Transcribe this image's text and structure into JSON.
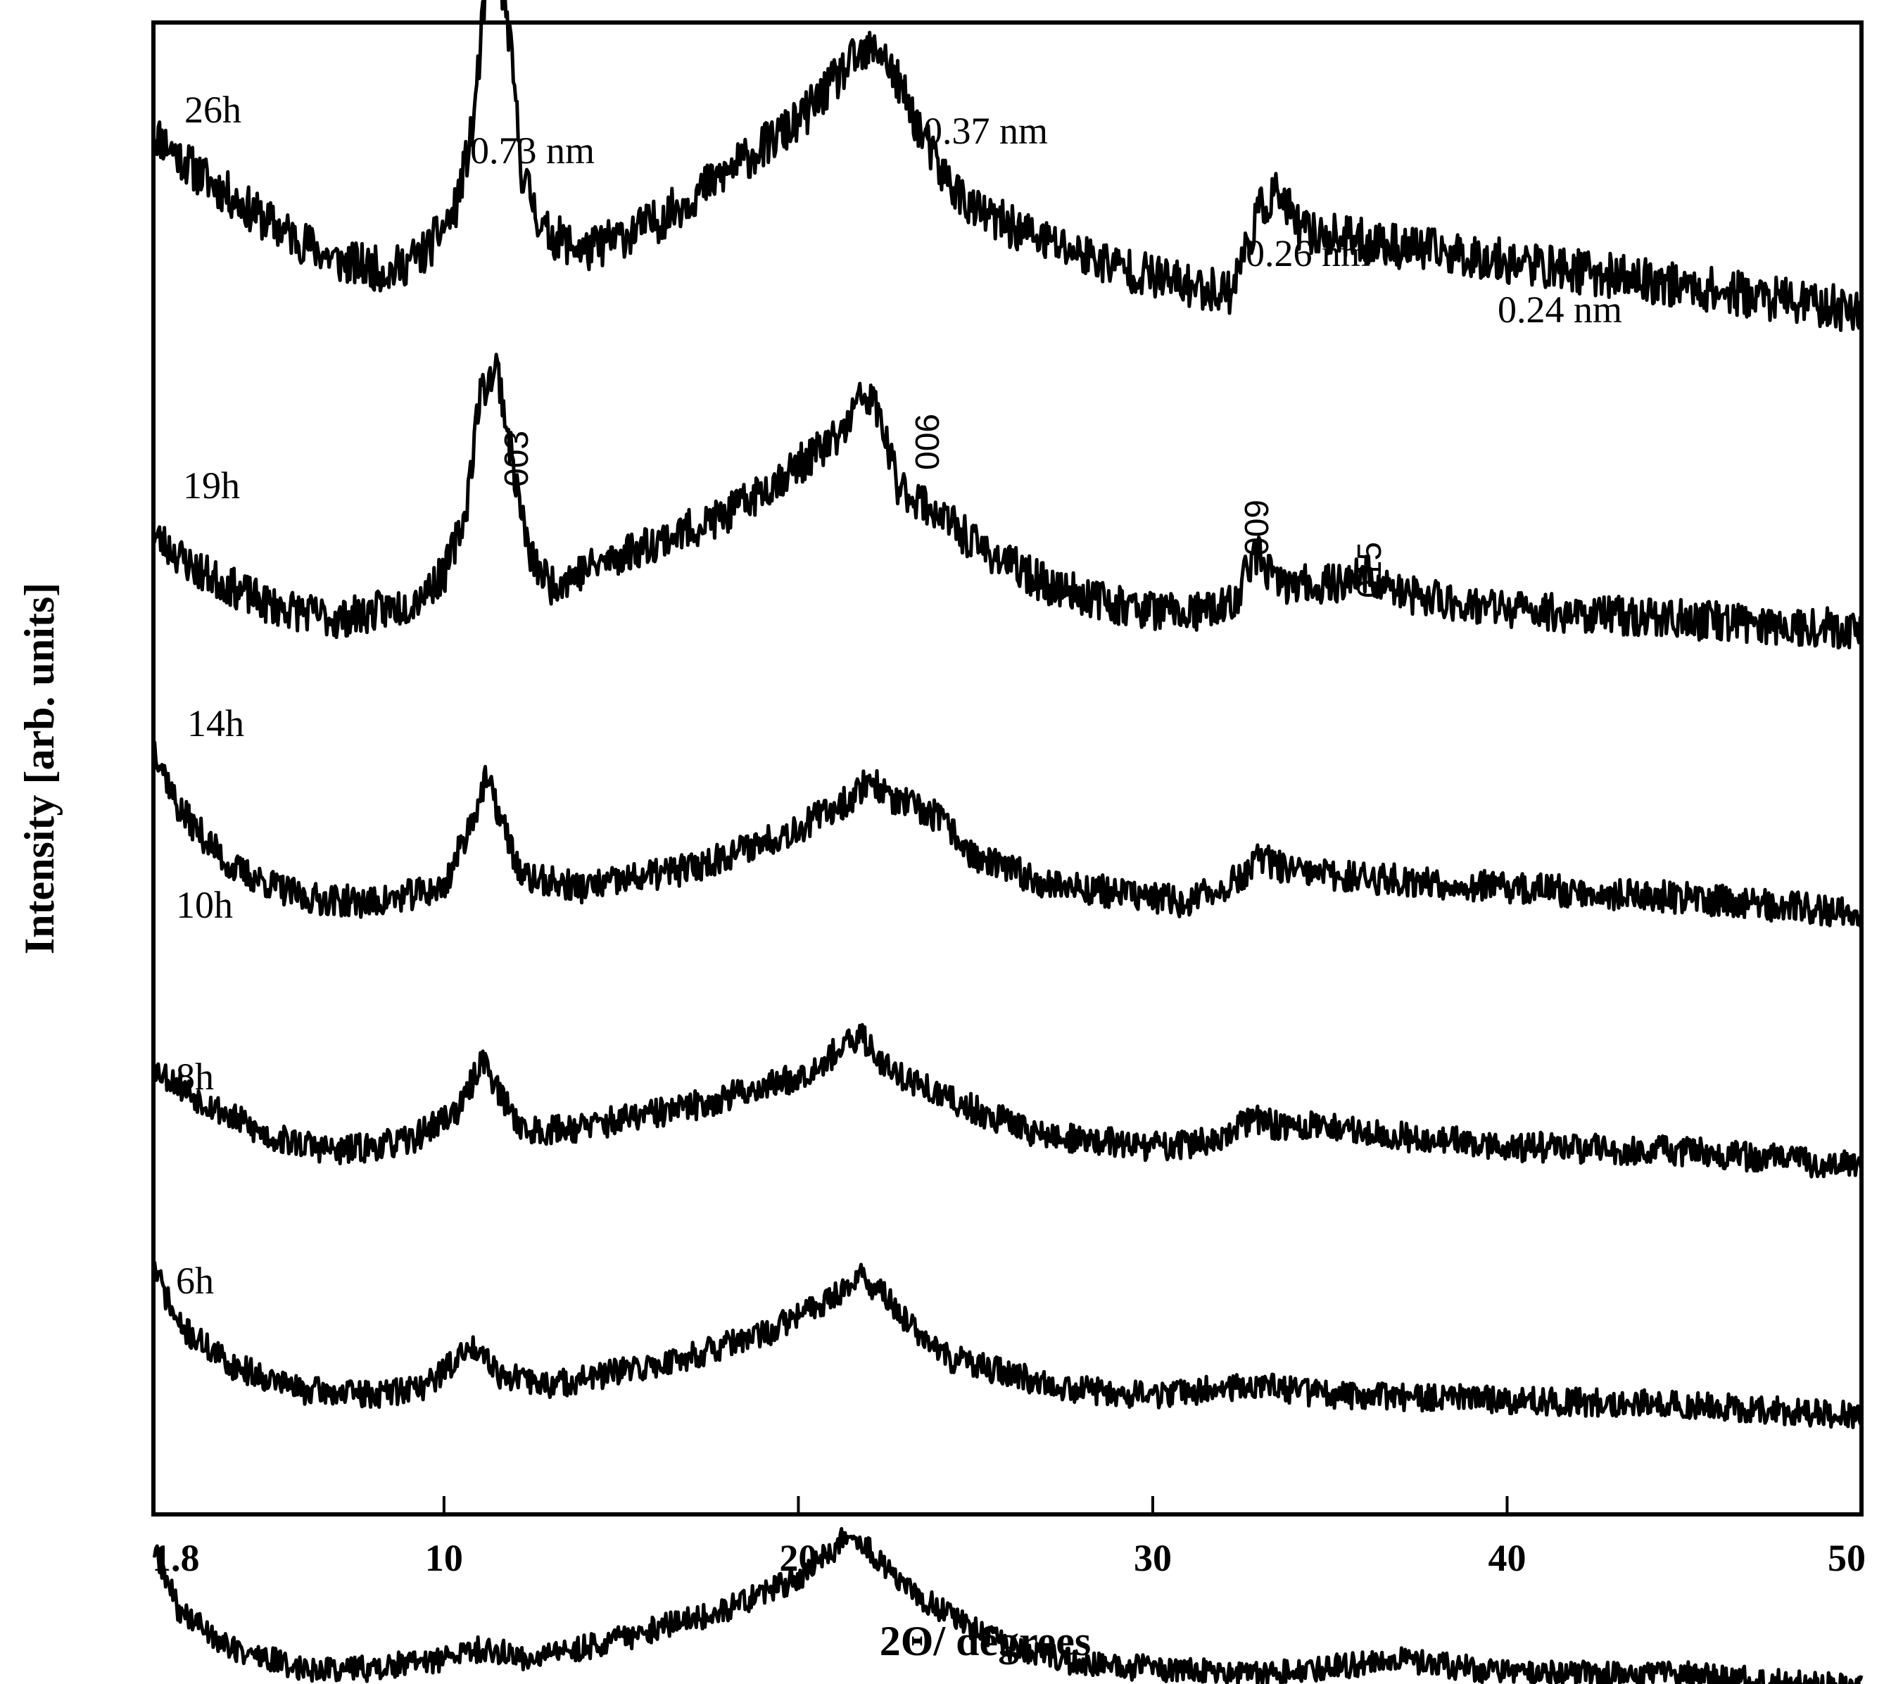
{
  "chart_data": {
    "type": "line",
    "xlabel": "2Θ/ degrees",
    "ylabel": "Intensity [arb. units]",
    "xlim": [
      1.8,
      50
    ],
    "x_ticks": [
      {
        "value": 1.8,
        "label": "1.8"
      },
      {
        "value": 10,
        "label": "10"
      },
      {
        "value": 20,
        "label": "20"
      },
      {
        "value": 30,
        "label": "30"
      },
      {
        "value": 40,
        "label": "40"
      },
      {
        "value": 50,
        "label": "50"
      }
    ],
    "y_ticks_shown": false,
    "grid": false,
    "ylim": [
      0,
      300
    ],
    "series": [
      {
        "name": "26h",
        "offset": 240,
        "noise": 4.5,
        "seed": 11,
        "points": [
          [
            1.8,
            38
          ],
          [
            3,
            30
          ],
          [
            5,
            20
          ],
          [
            7,
            12
          ],
          [
            8.5,
            10
          ],
          [
            9.5,
            14
          ],
          [
            10.3,
            22
          ],
          [
            10.8,
            38
          ],
          [
            11.2,
            68
          ],
          [
            11.5,
            72
          ],
          [
            11.8,
            60
          ],
          [
            12.2,
            30
          ],
          [
            12.8,
            18
          ],
          [
            14,
            14
          ],
          [
            16,
            20
          ],
          [
            18,
            30
          ],
          [
            20,
            40
          ],
          [
            21.5,
            52
          ],
          [
            22.3,
            55
          ],
          [
            23,
            45
          ],
          [
            24,
            30
          ],
          [
            25,
            22
          ],
          [
            27,
            16
          ],
          [
            29,
            11
          ],
          [
            31,
            7
          ],
          [
            32.2,
            6
          ],
          [
            33,
            22
          ],
          [
            33.5,
            26
          ],
          [
            34.2,
            18
          ],
          [
            36,
            16
          ],
          [
            38,
            14
          ],
          [
            40,
            12
          ],
          [
            43,
            9
          ],
          [
            46,
            6
          ],
          [
            50,
            2
          ]
        ]
      },
      {
        "name": "19h",
        "offset": 175,
        "noise": 4.0,
        "seed": 23,
        "points": [
          [
            1.8,
            22
          ],
          [
            3,
            15
          ],
          [
            5,
            8
          ],
          [
            7,
            5
          ],
          [
            9,
            8
          ],
          [
            10,
            14
          ],
          [
            10.6,
            26
          ],
          [
            11,
            50
          ],
          [
            11.5,
            56
          ],
          [
            11.9,
            38
          ],
          [
            12.4,
            18
          ],
          [
            13,
            12
          ],
          [
            15,
            18
          ],
          [
            18,
            26
          ],
          [
            20,
            36
          ],
          [
            21.2,
            42
          ],
          [
            21.8,
            50
          ],
          [
            22.2,
            48
          ],
          [
            22.8,
            32
          ],
          [
            24,
            26
          ],
          [
            25,
            20
          ],
          [
            27,
            12
          ],
          [
            29,
            8
          ],
          [
            31,
            6
          ],
          [
            32.3,
            8
          ],
          [
            32.7,
            16
          ],
          [
            33,
            18
          ],
          [
            33.5,
            12
          ],
          [
            35,
            12
          ],
          [
            36,
            14
          ],
          [
            37,
            10
          ],
          [
            40,
            7
          ],
          [
            45,
            5
          ],
          [
            50,
            3
          ]
        ]
      },
      {
        "name": "14h",
        "offset": 120,
        "noise": 3.2,
        "seed": 37,
        "points": [
          [
            1.8,
            35
          ],
          [
            2.5,
            22
          ],
          [
            4,
            10
          ],
          [
            6,
            4
          ],
          [
            8,
            3
          ],
          [
            10,
            6
          ],
          [
            10.8,
            20
          ],
          [
            11.2,
            28
          ],
          [
            11.6,
            20
          ],
          [
            12.2,
            8
          ],
          [
            14,
            6
          ],
          [
            17,
            10
          ],
          [
            20,
            18
          ],
          [
            21.5,
            24
          ],
          [
            22,
            28
          ],
          [
            22.6,
            24
          ],
          [
            24,
            20
          ],
          [
            25,
            12
          ],
          [
            27,
            7
          ],
          [
            29,
            5
          ],
          [
            31,
            3
          ],
          [
            32.5,
            8
          ],
          [
            33,
            12
          ],
          [
            34,
            9
          ],
          [
            36,
            8
          ],
          [
            40,
            6
          ],
          [
            45,
            4
          ],
          [
            50,
            1
          ]
        ]
      },
      {
        "name": "10h",
        "offset": 70,
        "noise": 3.0,
        "seed": 53,
        "points": [
          [
            1.8,
            20
          ],
          [
            3,
            14
          ],
          [
            5,
            6
          ],
          [
            7,
            3
          ],
          [
            9,
            5
          ],
          [
            10.5,
            12
          ],
          [
            11.1,
            22
          ],
          [
            11.6,
            14
          ],
          [
            12.3,
            7
          ],
          [
            14,
            8
          ],
          [
            17,
            12
          ],
          [
            20,
            18
          ],
          [
            21.3,
            24
          ],
          [
            21.8,
            26
          ],
          [
            22.5,
            20
          ],
          [
            24,
            14
          ],
          [
            25.5,
            10
          ],
          [
            27,
            6
          ],
          [
            30,
            4
          ],
          [
            32,
            5
          ],
          [
            32.8,
            10
          ],
          [
            33.5,
            8
          ],
          [
            35,
            8
          ],
          [
            37,
            6
          ],
          [
            40,
            4
          ],
          [
            45,
            3
          ],
          [
            50,
            0
          ]
        ]
      },
      {
        "name": "8h",
        "offset": 20,
        "noise": 2.8,
        "seed": 71,
        "points": [
          [
            1.8,
            30
          ],
          [
            2.5,
            18
          ],
          [
            4,
            10
          ],
          [
            6,
            5
          ],
          [
            8,
            4
          ],
          [
            9.5,
            6
          ],
          [
            10.5,
            12
          ],
          [
            11,
            14
          ],
          [
            11.6,
            8
          ],
          [
            13,
            6
          ],
          [
            16,
            10
          ],
          [
            19,
            16
          ],
          [
            21,
            24
          ],
          [
            21.8,
            28
          ],
          [
            22.4,
            24
          ],
          [
            24,
            12
          ],
          [
            26,
            8
          ],
          [
            28,
            5
          ],
          [
            30,
            4
          ],
          [
            33,
            6
          ],
          [
            35,
            4
          ],
          [
            40,
            3
          ],
          [
            45,
            2
          ],
          [
            50,
            0
          ]
        ]
      },
      {
        "name": "6h",
        "offset": -35,
        "noise": 2.6,
        "seed": 89,
        "points": [
          [
            1.8,
            28
          ],
          [
            2.5,
            16
          ],
          [
            4,
            8
          ],
          [
            6,
            4
          ],
          [
            8,
            4
          ],
          [
            10,
            6
          ],
          [
            11,
            8
          ],
          [
            12.5,
            6
          ],
          [
            15,
            10
          ],
          [
            18,
            16
          ],
          [
            20,
            22
          ],
          [
            21,
            28
          ],
          [
            21.5,
            32
          ],
          [
            22,
            28
          ],
          [
            23,
            20
          ],
          [
            24.5,
            14
          ],
          [
            26,
            8
          ],
          [
            28,
            5
          ],
          [
            30,
            4
          ],
          [
            33,
            3
          ],
          [
            36,
            5
          ],
          [
            37,
            6
          ],
          [
            40,
            3
          ],
          [
            45,
            3
          ],
          [
            50,
            0
          ]
        ]
      }
    ],
    "series_labels": [
      {
        "text": "26h"
      },
      {
        "text": "19h"
      },
      {
        "text": "14h"
      },
      {
        "text": "10h"
      },
      {
        "text": "8h"
      },
      {
        "text": "6h"
      }
    ],
    "annotations": [
      {
        "text": "0.73 nm",
        "kind": "d-spacing"
      },
      {
        "text": "0.37 nm",
        "kind": "d-spacing"
      },
      {
        "text": "0.26 nm",
        "kind": "d-spacing"
      },
      {
        "text": "0.24 nm",
        "kind": "d-spacing"
      },
      {
        "text": "003",
        "kind": "hkl"
      },
      {
        "text": "006",
        "kind": "hkl"
      },
      {
        "text": "009",
        "kind": "hkl"
      },
      {
        "text": "015",
        "kind": "hkl"
      }
    ]
  }
}
